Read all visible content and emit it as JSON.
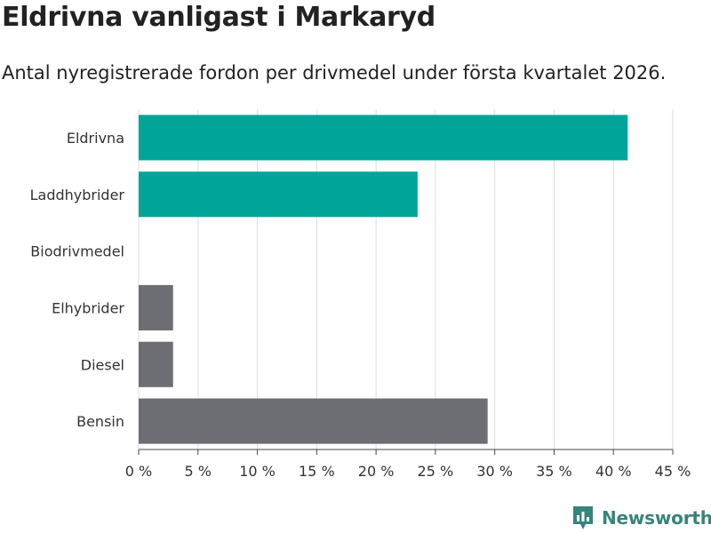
{
  "title": "Eldrivna vanligast i Markaryd",
  "subtitle": "Antal nyregistrerade fordon per drivmedel under första kvartalet 2026.",
  "brand": {
    "name": "Newsworthy",
    "color": "#37847a"
  },
  "colors": {
    "highlight": "#00a499",
    "default": "#6d6d74",
    "grid": "#dddddd"
  },
  "chart_data": {
    "type": "bar",
    "orientation": "horizontal",
    "categories": [
      "Eldrivna",
      "Laddhybrider",
      "Biodrivmedel",
      "Elhybrider",
      "Diesel",
      "Bensin"
    ],
    "values": [
      41.2,
      23.5,
      0,
      2.9,
      2.9,
      29.4
    ],
    "highlighted": [
      true,
      true,
      false,
      false,
      false,
      false
    ],
    "xlim": [
      0,
      45
    ],
    "xticks": [
      0,
      5,
      10,
      15,
      20,
      25,
      30,
      35,
      40,
      45
    ],
    "tick_suffix": " %",
    "grid": true,
    "xlabel": "",
    "ylabel": ""
  }
}
